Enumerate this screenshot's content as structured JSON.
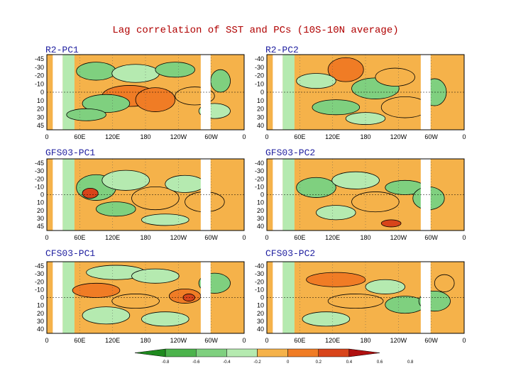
{
  "title": "Lag correlation of SST and PCs (10S-10N average)",
  "chart_data": [
    {
      "type": "heatmap",
      "title": "R2-PC1",
      "yticks": [
        "-45",
        "-30",
        "-20",
        "-10",
        "0",
        "10",
        "20",
        "30",
        "45"
      ],
      "xticks": [
        "0",
        "60E",
        "120E",
        "180",
        "120W",
        "60W",
        "0"
      ]
    },
    {
      "type": "heatmap",
      "title": "R2-PC2",
      "yticks": [
        "-40",
        "-30",
        "-20",
        "-10",
        "0",
        "10",
        "20",
        "30",
        "40"
      ],
      "xticks": [
        "0",
        "60E",
        "120E",
        "180",
        "120W",
        "60W",
        "0"
      ]
    },
    {
      "type": "heatmap",
      "title": "GFS03-PC1",
      "yticks": [
        "-45",
        "-30",
        "-20",
        "-10",
        "0",
        "10",
        "20",
        "30",
        "45"
      ],
      "xticks": [
        "0",
        "60E",
        "120E",
        "180",
        "120W",
        "60W",
        "0"
      ]
    },
    {
      "type": "heatmap",
      "title": "GFS03-PC2",
      "yticks": [
        "-40",
        "-30",
        "-20",
        "-10",
        "0",
        "10",
        "20",
        "30",
        "40"
      ],
      "xticks": [
        "0",
        "60E",
        "120E",
        "180",
        "120W",
        "60W",
        "0"
      ]
    },
    {
      "type": "heatmap",
      "title": "CFS03-PC1",
      "yticks": [
        "-45",
        "-30",
        "-20",
        "-10",
        "0",
        "10",
        "20",
        "30",
        "40"
      ],
      "xticks": [
        "0",
        "60E",
        "120E",
        "180",
        "120W",
        "60W",
        "0"
      ]
    },
    {
      "type": "heatmap",
      "title": "CFS03-PC2",
      "yticks": [
        "-40",
        "-30",
        "-20",
        "-10",
        "0",
        "10",
        "20",
        "30",
        "40"
      ],
      "xticks": [
        "0",
        "60E",
        "120E",
        "180",
        "120W",
        "60W",
        "0"
      ]
    }
  ],
  "colorbar": {
    "levels": [
      "-0.8",
      "-0.6",
      "-0.4",
      "-0.2",
      "0",
      "0.2",
      "0.4",
      "0.6",
      "0.8"
    ],
    "colors": [
      "#1f8a1f",
      "#4cb34c",
      "#7fd07f",
      "#b5eab0",
      "#f5b24a",
      "#f07c25",
      "#d8441a",
      "#b01010"
    ]
  },
  "palette": {
    "pos1": "#f5b24a",
    "pos2": "#f07c25",
    "pos3": "#d8441a",
    "neg1": "#b5eab0",
    "neg2": "#7fd07f",
    "neg3": "#4cb34c"
  }
}
